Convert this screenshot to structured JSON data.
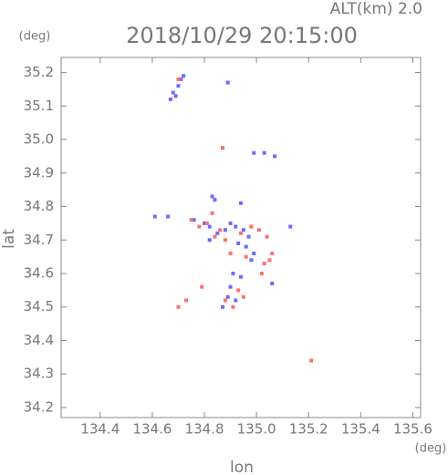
{
  "chart_data": {
    "type": "scatter",
    "title": "2018/10/29 20:15:00",
    "annotation": "ALT(km) 2.0",
    "y_unit": "(deg)",
    "x_unit": "(deg)",
    "x_label": "lon",
    "y_label": "lat",
    "xlim": [
      134.25,
      135.63
    ],
    "ylim": [
      34.17,
      35.245
    ],
    "xticks": [
      134.4,
      134.6,
      134.8,
      {
        "value": 135.0,
        "label": "135.0"
      },
      135.2,
      135.4,
      135.6
    ],
    "yticks": [
      34.2,
      34.3,
      34.4,
      34.5,
      34.6,
      34.7,
      34.8,
      34.9,
      {
        "value": 35.0,
        "label": "35.0"
      },
      35.1,
      35.2
    ],
    "series": [
      {
        "color": "#6b6bff",
        "x": [
          134.67,
          134.68,
          134.69,
          134.7,
          134.71,
          134.72,
          134.89,
          134.99,
          135.03,
          135.07,
          134.83,
          134.84,
          134.94,
          134.61,
          134.66,
          134.76,
          134.8,
          134.82,
          134.85,
          134.88,
          134.9,
          134.92,
          134.95,
          134.97,
          134.93,
          134.96,
          134.99,
          135.06,
          134.91,
          134.94,
          134.98,
          134.87,
          134.89,
          134.92,
          134.9,
          134.82,
          135.13
        ],
        "values": [
          35.12,
          35.14,
          35.13,
          35.16,
          35.18,
          35.19,
          35.17,
          34.96,
          34.96,
          34.95,
          34.83,
          34.82,
          34.81,
          34.77,
          34.77,
          34.76,
          34.75,
          34.74,
          34.72,
          34.73,
          34.75,
          34.74,
          34.73,
          34.71,
          34.69,
          34.68,
          34.66,
          34.57,
          34.6,
          34.59,
          34.64,
          34.5,
          34.53,
          34.52,
          34.56,
          34.7,
          34.74
        ]
      },
      {
        "color": "#ff7070",
        "x": [
          134.7,
          134.87,
          134.75,
          134.78,
          134.81,
          134.84,
          134.86,
          134.88,
          134.94,
          134.96,
          134.98,
          135.01,
          135.04,
          135.06,
          135.03,
          135.05,
          134.93,
          134.95,
          134.91,
          134.88,
          134.79,
          134.7,
          134.73,
          135.21,
          134.83,
          134.9,
          135.02
        ],
        "values": [
          35.18,
          34.975,
          34.76,
          34.74,
          34.75,
          34.71,
          34.73,
          34.7,
          34.72,
          34.65,
          34.74,
          34.73,
          34.71,
          34.66,
          34.63,
          34.64,
          34.55,
          34.53,
          34.5,
          34.52,
          34.56,
          34.5,
          34.52,
          34.34,
          34.78,
          34.66,
          34.6
        ]
      }
    ]
  }
}
